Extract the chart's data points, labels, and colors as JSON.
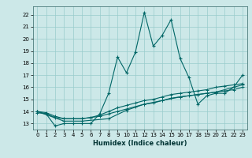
{
  "title": "",
  "xlabel": "Humidex (Indice chaleur)",
  "ylabel": "",
  "bg_color": "#cce8e8",
  "line_color": "#006666",
  "grid_color": "#99cccc",
  "xlim": [
    -0.5,
    23.5
  ],
  "ylim": [
    12.5,
    22.7
  ],
  "xticks": [
    0,
    1,
    2,
    3,
    4,
    5,
    6,
    7,
    8,
    9,
    10,
    11,
    12,
    13,
    14,
    15,
    16,
    17,
    18,
    19,
    20,
    21,
    22,
    23
  ],
  "yticks": [
    13,
    14,
    15,
    16,
    17,
    18,
    19,
    20,
    21,
    22
  ],
  "line1_x": [
    0,
    1,
    2,
    3,
    4,
    5,
    6,
    7,
    8,
    9,
    10,
    11,
    12,
    13,
    14,
    15,
    16,
    17,
    18,
    19,
    20,
    21,
    22,
    23
  ],
  "line1_y": [
    14.0,
    13.8,
    12.8,
    13.0,
    13.0,
    13.0,
    13.0,
    13.8,
    15.5,
    18.5,
    17.2,
    18.9,
    22.2,
    19.4,
    20.3,
    21.6,
    18.4,
    16.8,
    14.6,
    15.3,
    15.5,
    15.5,
    16.0,
    17.0
  ],
  "line2_x": [
    0,
    1,
    2,
    3,
    4,
    5,
    6,
    7,
    8,
    9,
    10,
    11,
    12,
    13,
    14,
    15,
    16,
    17,
    18,
    19,
    20,
    21,
    22,
    23
  ],
  "line2_y": [
    13.9,
    13.8,
    13.5,
    13.4,
    13.4,
    13.4,
    13.5,
    13.6,
    13.8,
    14.0,
    14.2,
    14.4,
    14.6,
    14.7,
    14.9,
    15.1,
    15.2,
    15.3,
    15.4,
    15.5,
    15.6,
    15.7,
    15.8,
    16.0
  ],
  "line3_x": [
    0,
    1,
    2,
    3,
    4,
    5,
    6,
    7,
    8,
    9,
    10,
    11,
    12,
    13,
    14,
    15,
    16,
    17,
    18,
    19,
    20,
    21,
    22,
    23
  ],
  "line3_y": [
    14.0,
    13.9,
    13.6,
    13.4,
    13.4,
    13.4,
    13.5,
    13.7,
    14.0,
    14.3,
    14.5,
    14.7,
    14.9,
    15.0,
    15.2,
    15.4,
    15.5,
    15.6,
    15.7,
    15.8,
    16.0,
    16.1,
    16.2,
    16.3
  ],
  "line4_x": [
    0,
    3,
    5,
    8,
    10,
    12,
    14,
    16,
    18,
    20,
    23
  ],
  "line4_y": [
    14.0,
    13.2,
    13.2,
    13.4,
    14.1,
    14.6,
    14.9,
    15.2,
    15.4,
    15.6,
    16.2
  ],
  "xlabel_fontsize": 6,
  "tick_fontsize": 5
}
